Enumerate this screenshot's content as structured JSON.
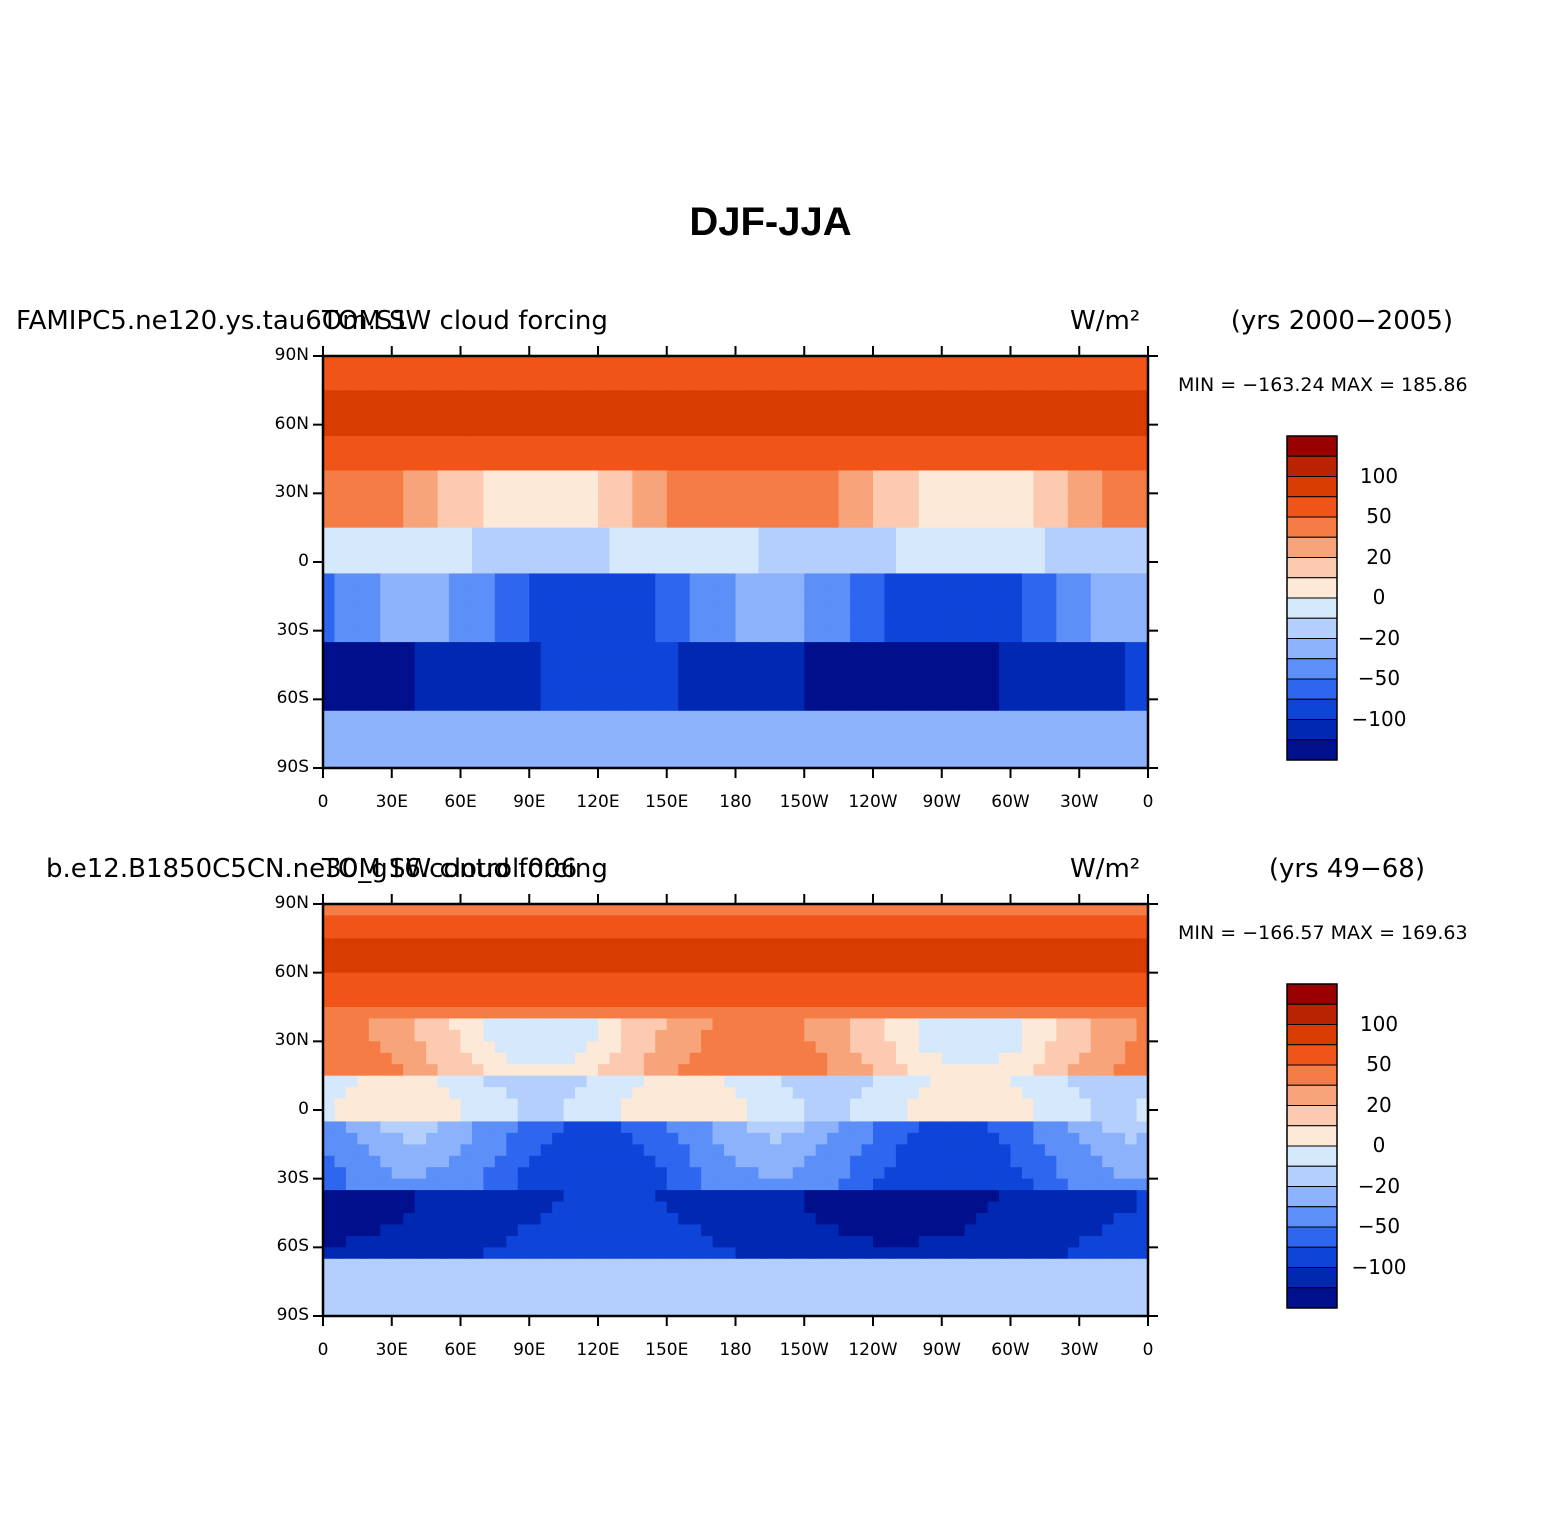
{
  "title": "DJF-JJA",
  "chart_data": [
    {
      "type": "heatmap",
      "case_name": "FAMIPC5.ne120.ys.tau6Om.S1",
      "variable": "TOM SW cloud forcing",
      "units": "W/m²",
      "years": "(yrs 2000−2005)",
      "minmax": "MIN = −163.24  MAX = 185.86",
      "min": -163.24,
      "max": 185.86,
      "lat_ticks": [
        "90N",
        "60N",
        "30N",
        "0",
        "30S",
        "60S",
        "90S"
      ],
      "lon_ticks": [
        "0",
        "30E",
        "60E",
        "90E",
        "120E",
        "150E",
        "180",
        "150W",
        "120W",
        "90W",
        "60W",
        "30W",
        "0"
      ],
      "colorbar_labels": [
        "100",
        "50",
        "20",
        "0",
        "−20",
        "−50",
        "−100"
      ],
      "colorbar_colors": [
        "#990000",
        "#b82400",
        "#d93c00",
        "#f05418",
        "#f57c44",
        "#f8a47a",
        "#fbcab0",
        "#fde9d7",
        "#d6e8fb",
        "#b4cffb",
        "#8cb2fb",
        "#5c8ff7",
        "#2e66f0",
        "#0f44d9",
        "#0028b3",
        "#00108c"
      ]
    },
    {
      "type": "heatmap",
      "case_name": "b.e12.B1850C5CN.ne30_g16.control.006",
      "variable": "TOM SW cloud forcing",
      "units": "W/m²",
      "years": "(yrs 49−68)",
      "minmax": "MIN = −166.57  MAX = 169.63",
      "min": -166.57,
      "max": 169.63,
      "lat_ticks": [
        "90N",
        "60N",
        "30N",
        "0",
        "30S",
        "60S",
        "90S"
      ],
      "lon_ticks": [
        "0",
        "30E",
        "60E",
        "90E",
        "120E",
        "150E",
        "180",
        "150W",
        "120W",
        "90W",
        "60W",
        "30W",
        "0"
      ],
      "colorbar_labels": [
        "100",
        "50",
        "20",
        "0",
        "−20",
        "−50",
        "−100"
      ],
      "colorbar_colors": [
        "#990000",
        "#b82400",
        "#d93c00",
        "#f05418",
        "#f57c44",
        "#f8a47a",
        "#fbcab0",
        "#fde9d7",
        "#d6e8fb",
        "#b4cffb",
        "#8cb2fb",
        "#5c8ff7",
        "#2e66f0",
        "#0f44d9",
        "#0028b3",
        "#00108c"
      ]
    }
  ]
}
